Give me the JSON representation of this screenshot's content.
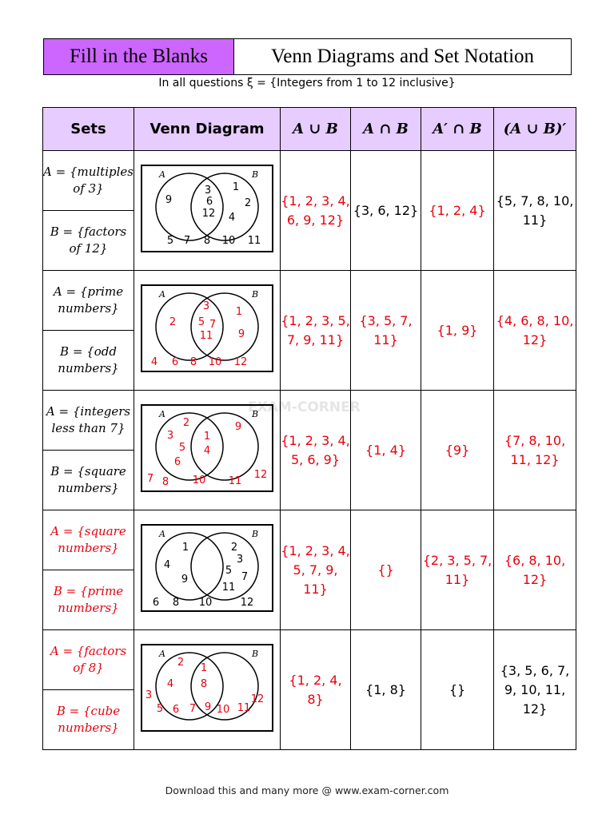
{
  "header": {
    "left_title": "Fill in the Blanks",
    "right_title": "Venn Diagrams and Set Notation",
    "universal_set": "In all questions ξ = {Integers from 1 to 12 inclusive}"
  },
  "table": {
    "headers": [
      "Sets",
      "Venn Diagram",
      "A ∪ B",
      "A ∩ B",
      "A′ ∩ B",
      "(A ∪ B)′"
    ],
    "rows": [
      {
        "set_a": "A = {multiples of 3}",
        "set_b": "B = {factors of 12}",
        "set_color": "black",
        "venn": {
          "a_only": [
            "9"
          ],
          "both": [
            "3",
            "6",
            "12"
          ],
          "b_only": [
            "1",
            "2",
            "4"
          ],
          "outside": [
            "5",
            "7",
            "8",
            "10",
            "11"
          ],
          "color": "black"
        },
        "union": "{1, 2, 3, 4, 6, 9, 12}",
        "union_color": "red",
        "inter": "{3, 6, 12}",
        "inter_color": "black",
        "acomp_b": "{1, 2, 4}",
        "acomp_b_color": "red",
        "union_comp": "{5, 7, 8, 10, 11}",
        "union_comp_color": "black"
      },
      {
        "set_a": "A = {prime numbers}",
        "set_b": "B = {odd numbers}",
        "set_color": "black",
        "venn": {
          "a_only": [
            "2"
          ],
          "both": [
            "3",
            "5",
            "7",
            "11"
          ],
          "b_only": [
            "1",
            "9"
          ],
          "outside": [
            "4",
            "6",
            "8",
            "10",
            "12"
          ],
          "color": "red"
        },
        "union": "{1, 2, 3, 5, 7, 9, 11}",
        "union_color": "red",
        "inter": "{3, 5, 7, 11}",
        "inter_color": "red",
        "acomp_b": "{1, 9}",
        "acomp_b_color": "red",
        "union_comp": "{4, 6, 8, 10, 12}",
        "union_comp_color": "red"
      },
      {
        "set_a": "A = {integers less than 7}",
        "set_b": "B = {square numbers}",
        "set_color": "black",
        "venn": {
          "a_only": [
            "2",
            "3",
            "5",
            "6"
          ],
          "both": [
            "1",
            "4"
          ],
          "b_only": [
            "9"
          ],
          "outside": [
            "7",
            "8",
            "10",
            "11",
            "12"
          ],
          "color": "red"
        },
        "union": "{1, 2, 3, 4, 5, 6, 9}",
        "union_color": "red",
        "inter": "{1, 4}",
        "inter_color": "red",
        "acomp_b": "{9}",
        "acomp_b_color": "red",
        "union_comp": "{7, 8, 10, 11, 12}",
        "union_comp_color": "red"
      },
      {
        "set_a": "A = {square numbers}",
        "set_b": "B = {prime numbers}",
        "set_color": "red",
        "venn": {
          "a_only": [
            "1",
            "4",
            "9"
          ],
          "both": [],
          "b_only": [
            "2",
            "3",
            "5",
            "7",
            "11"
          ],
          "outside": [
            "6",
            "8",
            "10",
            "12"
          ],
          "color": "black"
        },
        "union": "{1, 2, 3, 4, 5, 7, 9, 11}",
        "union_color": "red",
        "inter": "{}",
        "inter_color": "red",
        "acomp_b": "{2, 3, 5, 7, 11}",
        "acomp_b_color": "red",
        "union_comp": "{6, 8, 10, 12}",
        "union_comp_color": "red"
      },
      {
        "set_a": "A = {factors of 8}",
        "set_b": "B = {cube numbers}",
        "set_color": "red",
        "venn": {
          "a_only": [
            "2",
            "4"
          ],
          "both": [
            "1",
            "8"
          ],
          "b_only": [],
          "outside": [
            "3",
            "5",
            "6",
            "7",
            "9",
            "10",
            "11",
            "12"
          ],
          "color": "red"
        },
        "union": "{1, 2, 4, 8}",
        "union_color": "red",
        "inter": "{1, 8}",
        "inter_color": "black",
        "acomp_b": "{}",
        "acomp_b_color": "black",
        "union_comp": "{3, 5, 6, 7, 9, 10, 11, 12}",
        "union_comp_color": "black"
      }
    ]
  },
  "watermark": "EXAM-CORNER",
  "footer": "Download this and many more @ www.exam-corner.com"
}
